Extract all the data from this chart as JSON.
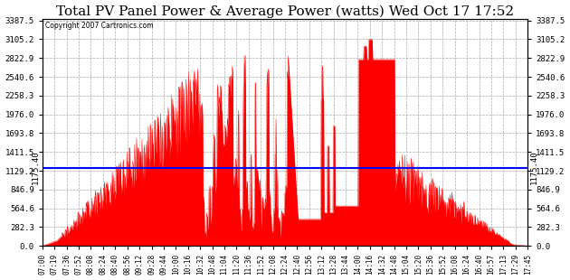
{
  "title": "Total PV Panel Power & Average Power (watts) Wed Oct 17 17:52",
  "copyright": "Copyright 2007 Cartronics.com",
  "avg_power": 1175.4,
  "y_max": 3387.5,
  "y_min": 0.0,
  "y_ticks": [
    0.0,
    282.3,
    564.6,
    846.9,
    1129.2,
    1411.5,
    1693.8,
    1976.0,
    2258.3,
    2540.6,
    2822.9,
    3105.2,
    3387.5
  ],
  "fill_color": "#FF0000",
  "line_color": "#0000FF",
  "bg_color": "#FFFFFF",
  "grid_color": "#AAAAAA",
  "title_fontsize": 11,
  "x_labels": [
    "07:00",
    "07:19",
    "07:36",
    "07:52",
    "08:08",
    "08:24",
    "08:40",
    "08:56",
    "09:12",
    "09:28",
    "09:44",
    "10:00",
    "10:16",
    "10:32",
    "10:48",
    "11:04",
    "11:20",
    "11:36",
    "11:52",
    "12:08",
    "12:24",
    "12:40",
    "12:56",
    "13:12",
    "13:28",
    "13:44",
    "14:00",
    "14:16",
    "14:32",
    "14:48",
    "15:04",
    "15:20",
    "15:36",
    "15:52",
    "16:08",
    "16:24",
    "16:40",
    "16:57",
    "17:13",
    "17:29",
    "17:45"
  ]
}
